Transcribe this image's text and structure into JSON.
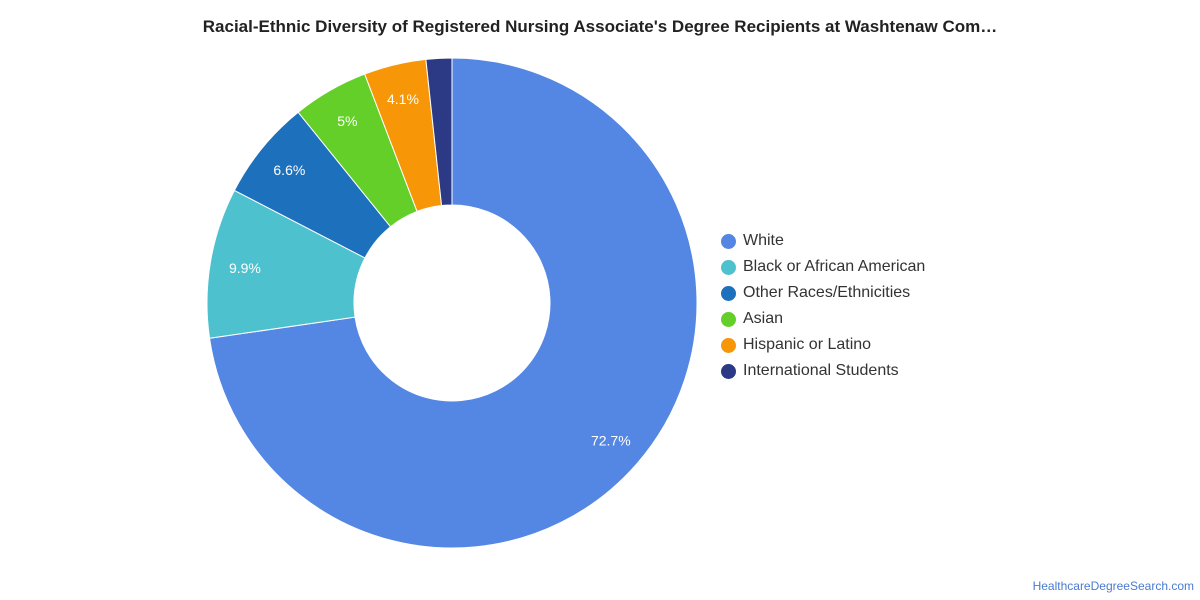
{
  "chart_data": {
    "type": "pie",
    "donut": true,
    "title": "Racial-Ethnic Diversity of Registered Nursing Associate's Degree Recipients at Washtenaw Com…",
    "legend_position": "right",
    "slices": [
      {
        "name": "White",
        "value": 72.7,
        "label": "72.7%",
        "color": "#5486e3"
      },
      {
        "name": "Black or African American",
        "value": 9.9,
        "label": "9.9%",
        "color": "#4ec1ce"
      },
      {
        "name": "Other Races/Ethnicities",
        "value": 6.6,
        "label": "6.6%",
        "color": "#1c70bc"
      },
      {
        "name": "Asian",
        "value": 5.0,
        "label": "5%",
        "color": "#63cf28"
      },
      {
        "name": "Hispanic or Latino",
        "value": 4.1,
        "label": "4.1%",
        "color": "#f79707"
      },
      {
        "name": "International Students",
        "value": 1.7,
        "label": "",
        "color": "#2c3985"
      }
    ]
  },
  "footer": {
    "source": "HealthcareDegreeSearch.com"
  }
}
